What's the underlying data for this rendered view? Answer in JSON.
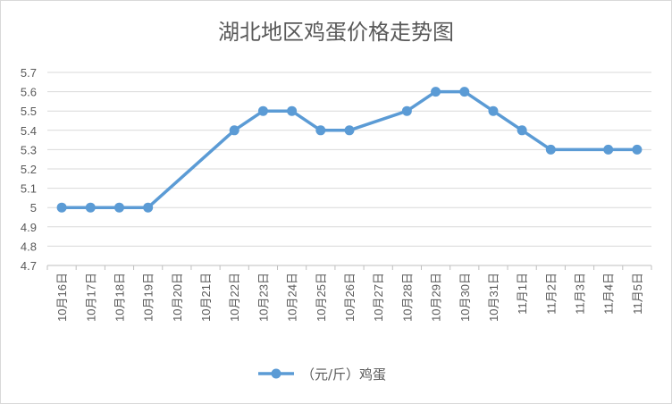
{
  "chart_data": {
    "type": "line",
    "title": "湖北地区鸡蛋价格走势图",
    "categories": [
      "10月16日",
      "10月17日",
      "10月18日",
      "10月19日",
      "10月20日",
      "10月21日",
      "10月22日",
      "10月23日",
      "10月24日",
      "10月25日",
      "10月26日",
      "10月27日",
      "10月28日",
      "10月29日",
      "10月30日",
      "10月31日",
      "11月1日",
      "11月2日",
      "11月3日",
      "11月4日",
      "11月5日"
    ],
    "series": [
      {
        "name": "（元/斤）鸡蛋",
        "values": [
          5.0,
          5.0,
          5.0,
          5.0,
          null,
          null,
          5.4,
          5.5,
          5.5,
          5.4,
          5.4,
          null,
          5.5,
          5.6,
          5.6,
          5.5,
          5.4,
          5.3,
          null,
          5.3,
          5.3
        ]
      }
    ],
    "yticks": [
      "4.7",
      "4.8",
      "4.9",
      "5",
      "5.1",
      "5.2",
      "5.3",
      "5.4",
      "5.5",
      "5.6",
      "5.7"
    ],
    "ylim": [
      4.7,
      5.7
    ],
    "grid": true,
    "legend_position": "bottom",
    "color": "#5b9bd5"
  }
}
